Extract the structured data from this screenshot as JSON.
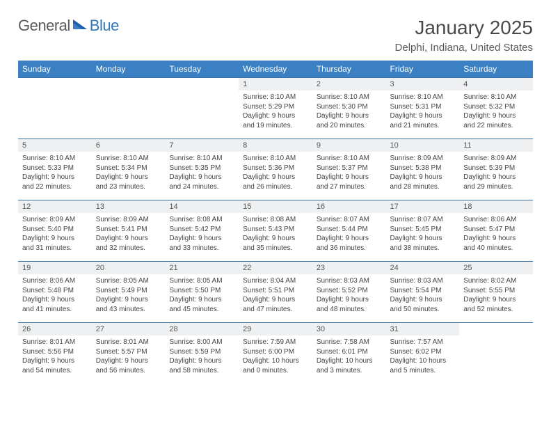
{
  "brand": {
    "word1": "General",
    "word2": "Blue"
  },
  "title": "January 2025",
  "location": "Delphi, Indiana, United States",
  "colors": {
    "header_bg": "#3a80c3",
    "header_fg": "#ffffff",
    "row_border": "#3a6ea5",
    "daynum_bg": "#eef0f2",
    "text": "#444444",
    "brand_gray": "#5a5a5a",
    "brand_blue": "#2f77bb"
  },
  "day_labels": [
    "Sunday",
    "Monday",
    "Tuesday",
    "Wednesday",
    "Thursday",
    "Friday",
    "Saturday"
  ],
  "weeks": [
    [
      null,
      null,
      null,
      {
        "n": "1",
        "sr": "8:10 AM",
        "ss": "5:29 PM",
        "dl": "9 hours and 19 minutes."
      },
      {
        "n": "2",
        "sr": "8:10 AM",
        "ss": "5:30 PM",
        "dl": "9 hours and 20 minutes."
      },
      {
        "n": "3",
        "sr": "8:10 AM",
        "ss": "5:31 PM",
        "dl": "9 hours and 21 minutes."
      },
      {
        "n": "4",
        "sr": "8:10 AM",
        "ss": "5:32 PM",
        "dl": "9 hours and 22 minutes."
      }
    ],
    [
      {
        "n": "5",
        "sr": "8:10 AM",
        "ss": "5:33 PM",
        "dl": "9 hours and 22 minutes."
      },
      {
        "n": "6",
        "sr": "8:10 AM",
        "ss": "5:34 PM",
        "dl": "9 hours and 23 minutes."
      },
      {
        "n": "7",
        "sr": "8:10 AM",
        "ss": "5:35 PM",
        "dl": "9 hours and 24 minutes."
      },
      {
        "n": "8",
        "sr": "8:10 AM",
        "ss": "5:36 PM",
        "dl": "9 hours and 26 minutes."
      },
      {
        "n": "9",
        "sr": "8:10 AM",
        "ss": "5:37 PM",
        "dl": "9 hours and 27 minutes."
      },
      {
        "n": "10",
        "sr": "8:09 AM",
        "ss": "5:38 PM",
        "dl": "9 hours and 28 minutes."
      },
      {
        "n": "11",
        "sr": "8:09 AM",
        "ss": "5:39 PM",
        "dl": "9 hours and 29 minutes."
      }
    ],
    [
      {
        "n": "12",
        "sr": "8:09 AM",
        "ss": "5:40 PM",
        "dl": "9 hours and 31 minutes."
      },
      {
        "n": "13",
        "sr": "8:09 AM",
        "ss": "5:41 PM",
        "dl": "9 hours and 32 minutes."
      },
      {
        "n": "14",
        "sr": "8:08 AM",
        "ss": "5:42 PM",
        "dl": "9 hours and 33 minutes."
      },
      {
        "n": "15",
        "sr": "8:08 AM",
        "ss": "5:43 PM",
        "dl": "9 hours and 35 minutes."
      },
      {
        "n": "16",
        "sr": "8:07 AM",
        "ss": "5:44 PM",
        "dl": "9 hours and 36 minutes."
      },
      {
        "n": "17",
        "sr": "8:07 AM",
        "ss": "5:45 PM",
        "dl": "9 hours and 38 minutes."
      },
      {
        "n": "18",
        "sr": "8:06 AM",
        "ss": "5:47 PM",
        "dl": "9 hours and 40 minutes."
      }
    ],
    [
      {
        "n": "19",
        "sr": "8:06 AM",
        "ss": "5:48 PM",
        "dl": "9 hours and 41 minutes."
      },
      {
        "n": "20",
        "sr": "8:05 AM",
        "ss": "5:49 PM",
        "dl": "9 hours and 43 minutes."
      },
      {
        "n": "21",
        "sr": "8:05 AM",
        "ss": "5:50 PM",
        "dl": "9 hours and 45 minutes."
      },
      {
        "n": "22",
        "sr": "8:04 AM",
        "ss": "5:51 PM",
        "dl": "9 hours and 47 minutes."
      },
      {
        "n": "23",
        "sr": "8:03 AM",
        "ss": "5:52 PM",
        "dl": "9 hours and 48 minutes."
      },
      {
        "n": "24",
        "sr": "8:03 AM",
        "ss": "5:54 PM",
        "dl": "9 hours and 50 minutes."
      },
      {
        "n": "25",
        "sr": "8:02 AM",
        "ss": "5:55 PM",
        "dl": "9 hours and 52 minutes."
      }
    ],
    [
      {
        "n": "26",
        "sr": "8:01 AM",
        "ss": "5:56 PM",
        "dl": "9 hours and 54 minutes."
      },
      {
        "n": "27",
        "sr": "8:01 AM",
        "ss": "5:57 PM",
        "dl": "9 hours and 56 minutes."
      },
      {
        "n": "28",
        "sr": "8:00 AM",
        "ss": "5:59 PM",
        "dl": "9 hours and 58 minutes."
      },
      {
        "n": "29",
        "sr": "7:59 AM",
        "ss": "6:00 PM",
        "dl": "10 hours and 0 minutes."
      },
      {
        "n": "30",
        "sr": "7:58 AM",
        "ss": "6:01 PM",
        "dl": "10 hours and 3 minutes."
      },
      {
        "n": "31",
        "sr": "7:57 AM",
        "ss": "6:02 PM",
        "dl": "10 hours and 5 minutes."
      },
      null
    ]
  ],
  "labels": {
    "sunrise": "Sunrise:",
    "sunset": "Sunset:",
    "daylight": "Daylight:"
  }
}
